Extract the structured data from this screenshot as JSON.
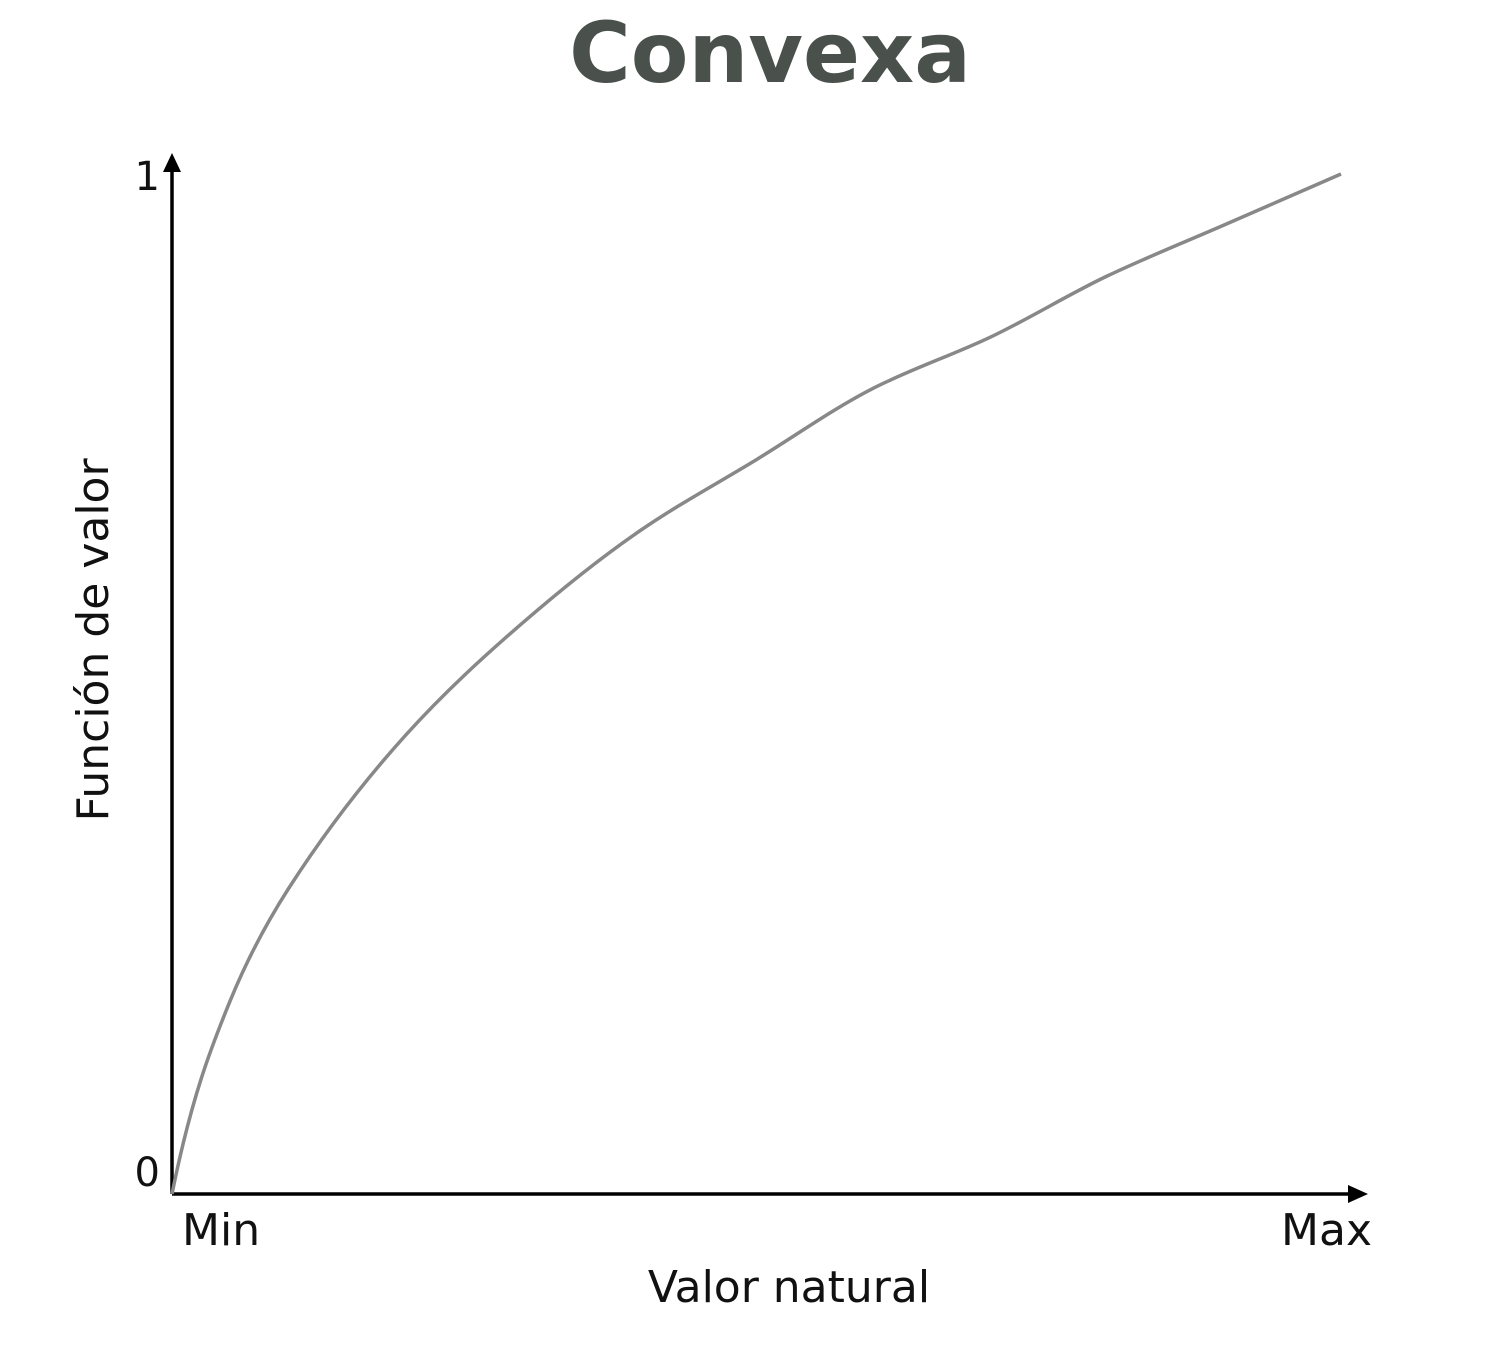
{
  "chart_data": {
    "type": "line",
    "title": "Convexa",
    "xlabel": "Valor natural",
    "ylabel": "Función de valor",
    "x_tick_labels": [
      "Min",
      "Max"
    ],
    "y_tick_labels": [
      "0",
      "1"
    ],
    "xlim": [
      0,
      1
    ],
    "ylim": [
      0,
      1
    ],
    "grid": false,
    "x": [
      0,
      0.05,
      0.1,
      0.2,
      0.3,
      0.4,
      0.5,
      0.6,
      0.7,
      0.8,
      0.9,
      1.0
    ],
    "series": [
      {
        "values": [
          0,
          0.19,
          0.3,
          0.45,
          0.56,
          0.65,
          0.72,
          0.79,
          0.84,
          0.9,
          0.95,
          1.0
        ]
      }
    ]
  },
  "colors": {
    "title": "#4a514c",
    "axis": "#000000",
    "curve": "#888888"
  }
}
